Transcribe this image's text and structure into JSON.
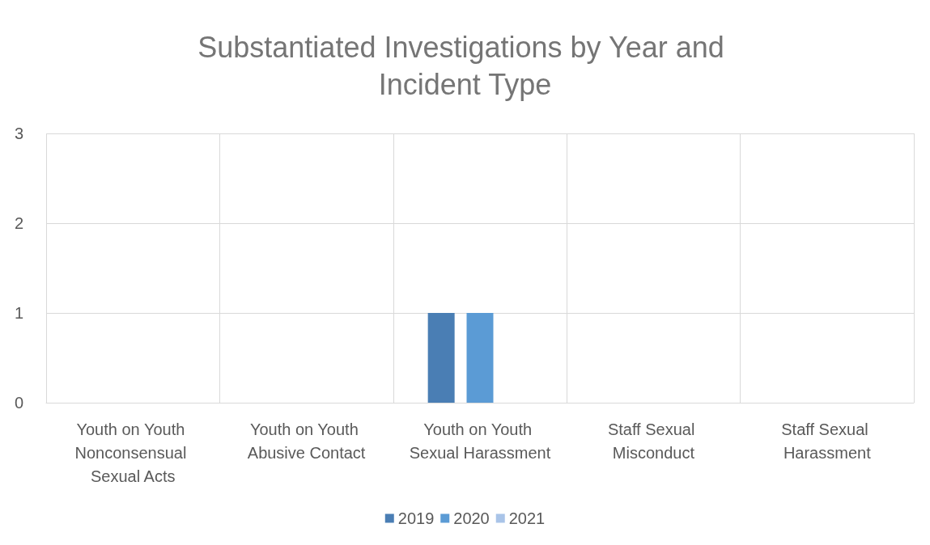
{
  "chart_data": {
    "type": "bar",
    "title": "Substantiated Investigations by Year and Incident Type",
    "categories": [
      "Youth on Youth Nonconsensual Sexual Acts",
      "Youth on Youth Abusive Contact",
      "Youth on Youth Sexual Harassment",
      "Staff Sexual Misconduct",
      "Staff Sexual Harassment"
    ],
    "series": [
      {
        "name": "2019",
        "color": "#4a7eb4",
        "values": [
          0,
          0,
          1,
          0,
          0
        ]
      },
      {
        "name": "2020",
        "color": "#5b9bd5",
        "values": [
          0,
          0,
          1,
          0,
          0
        ]
      },
      {
        "name": "2021",
        "color": "#a9c4e8",
        "values": [
          0,
          0,
          0,
          0,
          0
        ]
      }
    ],
    "ylim": [
      0,
      3
    ],
    "yticks": [
      0,
      1,
      2,
      3
    ],
    "grid": true,
    "legend": "bottom"
  }
}
